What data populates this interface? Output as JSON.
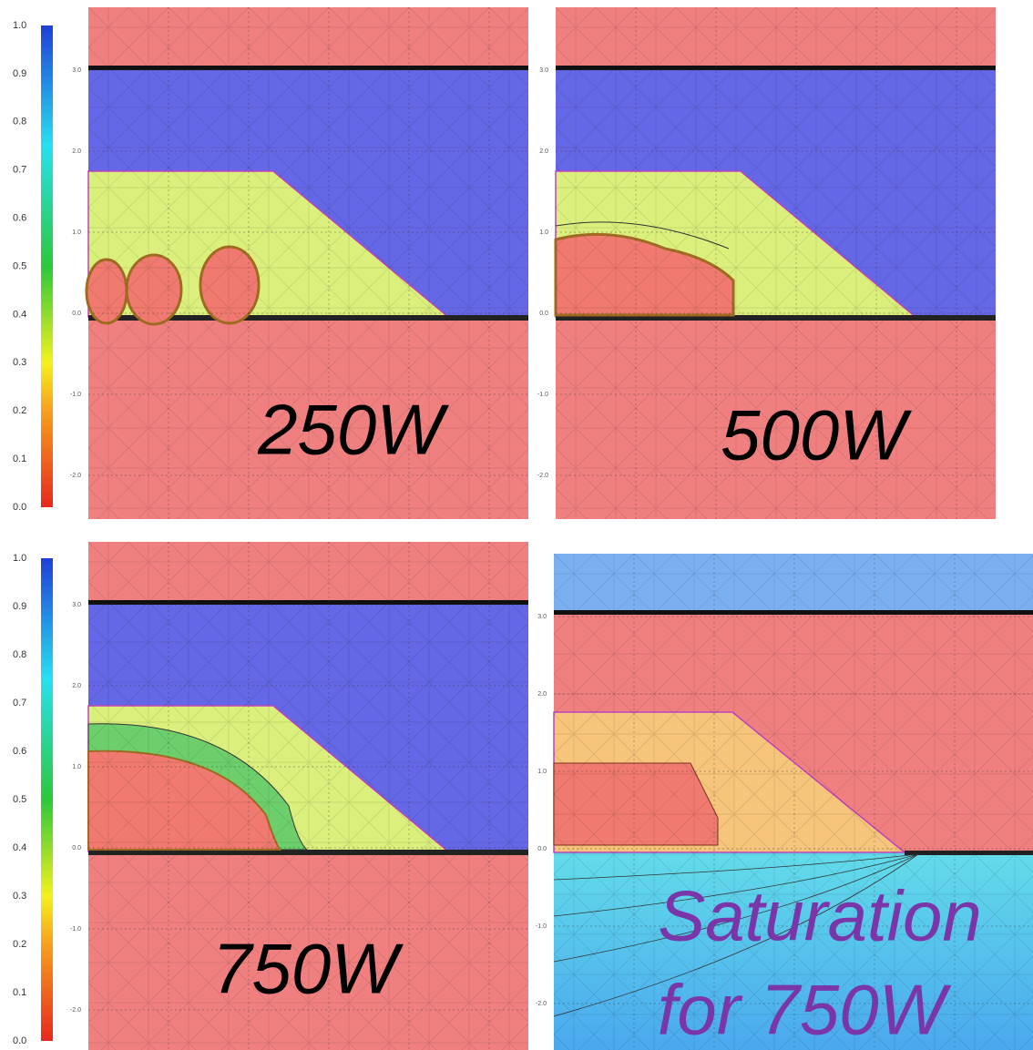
{
  "colorbars": [
    {
      "ticks": [
        "1.0",
        "0.9",
        "0.8",
        "0.7",
        "0.6",
        "0.5",
        "0.4",
        "0.3",
        "0.2",
        "0.1",
        "0.0"
      ]
    },
    {
      "ticks": [
        "1.0",
        "0.9",
        "0.8",
        "0.7",
        "0.6",
        "0.5",
        "0.4",
        "0.3",
        "0.2",
        "0.1",
        "0.0"
      ]
    }
  ],
  "panels": [
    {
      "label": [
        "250W"
      ],
      "yticks": [
        "3.0",
        "2.0",
        "1.0",
        "0.0",
        "-1.0",
        "-2.0"
      ]
    },
    {
      "label": [
        "500W"
      ],
      "yticks": [
        "3.0",
        "2.0",
        "1.0",
        "0.0",
        "-1.0",
        "-2.0"
      ]
    },
    {
      "label": [
        "750W"
      ],
      "yticks": [
        "3.0",
        "2.0",
        "1.0",
        "0.0",
        "-1.0",
        "-2.0"
      ]
    },
    {
      "label": [
        "Saturation",
        "for 750W"
      ],
      "yticks": [
        "3.0",
        "2.0",
        "1.0",
        "0.0",
        "-1.0",
        "-2.0"
      ]
    }
  ]
}
